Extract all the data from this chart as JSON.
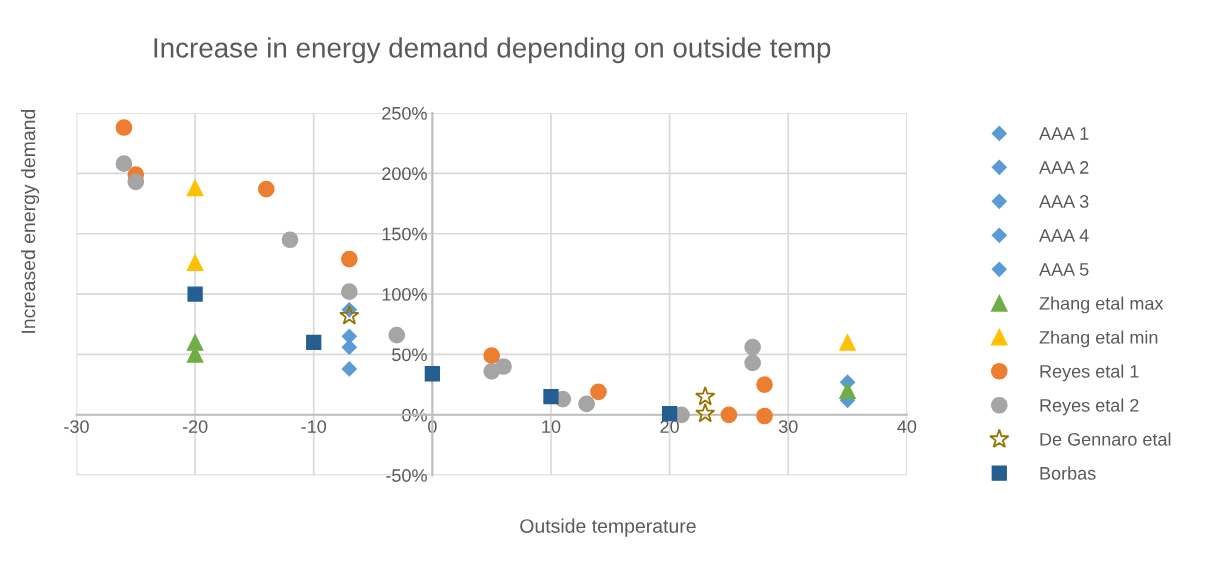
{
  "chart_data": {
    "type": "scatter",
    "title": "Increase in energy demand depending on outside temp",
    "xlabel": "Outside temperature",
    "ylabel": "Increased energy demand",
    "xlim": [
      -30,
      40
    ],
    "xticks": [
      -30,
      -20,
      -10,
      0,
      10,
      20,
      30,
      40
    ],
    "ylim": [
      -50,
      250
    ],
    "yticks": [
      {
        "value": -50,
        "label": "-50%"
      },
      {
        "value": 0,
        "label": "0%"
      },
      {
        "value": 50,
        "label": "50%"
      },
      {
        "value": 100,
        "label": "100%"
      },
      {
        "value": 150,
        "label": "150%"
      },
      {
        "value": 200,
        "label": "200%"
      },
      {
        "value": 250,
        "label": "250%"
      }
    ],
    "grid": true,
    "legend": "right",
    "series": [
      {
        "name": "AAA 1",
        "color": "#5b9bd5",
        "marker": "diamond",
        "x": [
          -7,
          35
        ],
        "values": [
          87,
          27
        ]
      },
      {
        "name": "AAA 2",
        "color": "#5b9bd5",
        "marker": "diamond",
        "x": [
          -7
        ],
        "values": [
          65
        ]
      },
      {
        "name": "AAA 3",
        "color": "#5b9bd5",
        "marker": "diamond",
        "x": [
          -7
        ],
        "values": [
          56
        ]
      },
      {
        "name": "AAA 4",
        "color": "#5b9bd5",
        "marker": "diamond",
        "x": [
          -7,
          35
        ],
        "values": [
          38,
          12
        ]
      },
      {
        "name": "AAA 5",
        "color": "#5b9bd5",
        "marker": "diamond"
      },
      {
        "name": "Zhang etal max",
        "color": "#70ad47",
        "marker": "triangle",
        "x": [
          -20,
          -20,
          35
        ],
        "values": [
          60,
          50,
          20
        ]
      },
      {
        "name": "Zhang etal min",
        "color": "#ffc000",
        "marker": "triangle",
        "x": [
          -20,
          -20,
          35
        ],
        "values": [
          188,
          126,
          60
        ]
      },
      {
        "name": "Reyes etal 1",
        "color": "#ed7d31",
        "marker": "circle",
        "x": [
          -26,
          -25,
          -14,
          -7,
          5,
          14,
          25,
          28,
          28
        ],
        "values": [
          238,
          199,
          187,
          129,
          49,
          19,
          0,
          25,
          -1
        ]
      },
      {
        "name": "Reyes etal 2",
        "color": "#a5a5a5",
        "marker": "circle",
        "x": [
          -26,
          -25,
          -12,
          -7,
          -3,
          5,
          6,
          11,
          13,
          21,
          27,
          27
        ],
        "values": [
          208,
          193,
          145,
          102,
          66,
          36,
          40,
          13,
          9,
          0,
          56,
          43
        ]
      },
      {
        "name": "De Gennaro etal",
        "color": "#997300",
        "marker": "star",
        "x": [
          -7,
          23,
          23
        ],
        "values": [
          82,
          15,
          1
        ]
      },
      {
        "name": "Borbas",
        "color": "#255e91",
        "marker": "square",
        "x": [
          -20,
          -10,
          0,
          10,
          20
        ],
        "values": [
          100,
          60,
          34,
          15,
          1
        ]
      }
    ]
  }
}
